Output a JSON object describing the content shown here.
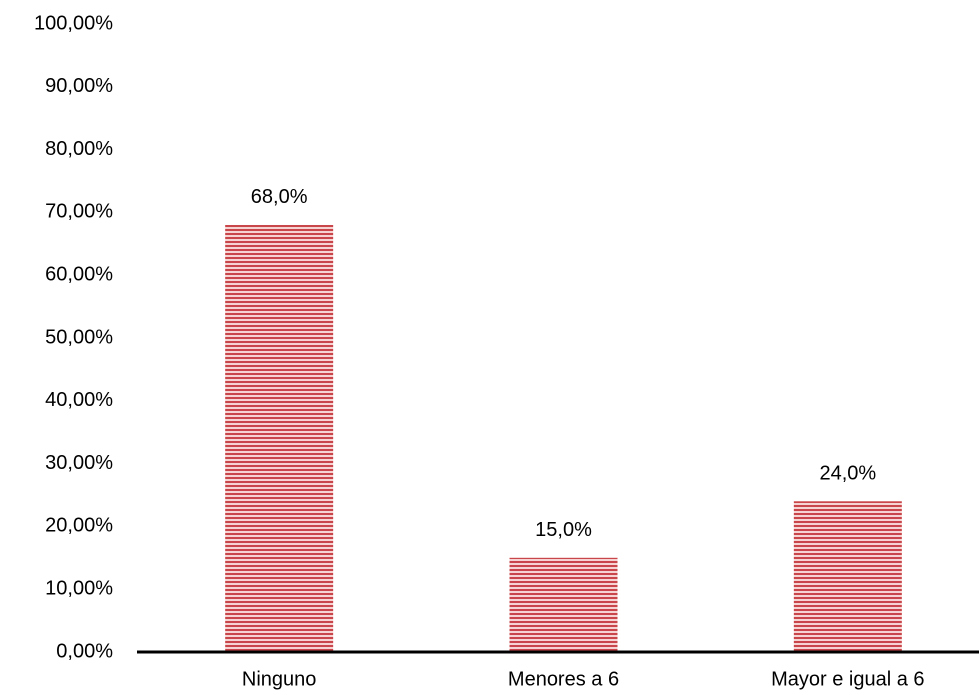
{
  "chart_data": {
    "type": "bar",
    "categories": [
      "Ninguno",
      "Menores a 6",
      "Mayor e igual a 6"
    ],
    "values": [
      68,
      15,
      24
    ],
    "value_labels": [
      "68,0%",
      "15,0%",
      "24,0%"
    ],
    "color": "#c9474a",
    "ylim": [
      0,
      100
    ],
    "yticks": [
      {
        "value": 0,
        "label": "0,00%"
      },
      {
        "value": 10,
        "label": "10,00%"
      },
      {
        "value": 20,
        "label": "20,00%"
      },
      {
        "value": 30,
        "label": "30,00%"
      },
      {
        "value": 40,
        "label": "40,00%"
      },
      {
        "value": 50,
        "label": "50,00%"
      },
      {
        "value": 60,
        "label": "60,00%"
      },
      {
        "value": 70,
        "label": "70,00%"
      },
      {
        "value": 80,
        "label": "80,00%"
      },
      {
        "value": 90,
        "label": "90,00%"
      },
      {
        "value": 100,
        "label": "100,00%"
      }
    ],
    "grid": false
  }
}
